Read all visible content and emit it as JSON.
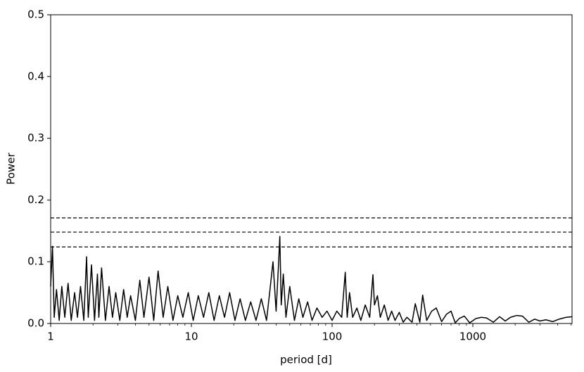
{
  "chart_data": {
    "type": "line",
    "xlabel": "period [d]",
    "ylabel": "Power",
    "xscale": "log",
    "xlim": [
      1,
      5070
    ],
    "ylim": [
      0,
      0.5
    ],
    "xticks": [
      1,
      10,
      100,
      1000
    ],
    "yticks": [
      {
        "value": 0,
        "label": "0.0"
      },
      0.1,
      0.2,
      0.3,
      0.4,
      0.5
    ],
    "color": "#000000",
    "hlines": [
      0.171,
      0.148,
      0.124
    ],
    "x": [
      1,
      1.03,
      1.06,
      1.1,
      1.15,
      1.2,
      1.26,
      1.33,
      1.4,
      1.48,
      1.55,
      1.63,
      1.72,
      1.8,
      1.85,
      1.95,
      2.05,
      2.15,
      2.2,
      2.3,
      2.45,
      2.6,
      2.75,
      2.9,
      3.1,
      3.3,
      3.5,
      3.7,
      4.0,
      4.3,
      4.6,
      5.0,
      5.4,
      5.8,
      6.3,
      6.8,
      7.4,
      8.0,
      8.7,
      9.5,
      10.3,
      11.2,
      12.2,
      13.3,
      14.5,
      15.8,
      17.2,
      18.7,
      20.4,
      22.2,
      24.2,
      26.4,
      28.8,
      31.4,
      34.2,
      36,
      38,
      40,
      41.5,
      42.5,
      43.5,
      45,
      47,
      50,
      54,
      58,
      62,
      67,
      72,
      78,
      85,
      92,
      100,
      108,
      117,
      124,
      128,
      133,
      140,
      150,
      160,
      172,
      185,
      195,
      200,
      210,
      220,
      235,
      250,
      265,
      280,
      300,
      320,
      340,
      370,
      390,
      420,
      440,
      470,
      510,
      550,
      600,
      650,
      700,
      750,
      800,
      870,
      950,
      1050,
      1150,
      1250,
      1400,
      1550,
      1700,
      1850,
      2050,
      2250,
      2500,
      2750,
      3000,
      3300,
      3700,
      4100,
      4600,
      5070
    ],
    "values": [
      0.06,
      0.125,
      0.01,
      0.055,
      0.005,
      0.06,
      0.01,
      0.065,
      0.005,
      0.05,
      0.01,
      0.06,
      0.005,
      0.108,
      0.01,
      0.095,
      0.005,
      0.08,
      0.01,
      0.09,
      0.005,
      0.06,
      0.01,
      0.05,
      0.005,
      0.055,
      0.01,
      0.045,
      0.005,
      0.07,
      0.01,
      0.075,
      0.005,
      0.085,
      0.01,
      0.06,
      0.005,
      0.045,
      0.01,
      0.05,
      0.005,
      0.045,
      0.01,
      0.05,
      0.005,
      0.045,
      0.01,
      0.05,
      0.005,
      0.04,
      0.005,
      0.035,
      0.005,
      0.04,
      0.005,
      0.05,
      0.1,
      0.02,
      0.09,
      0.141,
      0.03,
      0.08,
      0.01,
      0.06,
      0.005,
      0.04,
      0.01,
      0.035,
      0.005,
      0.025,
      0.01,
      0.02,
      0.005,
      0.02,
      0.01,
      0.083,
      0.01,
      0.05,
      0.01,
      0.025,
      0.005,
      0.03,
      0.01,
      0.079,
      0.03,
      0.045,
      0.01,
      0.03,
      0.005,
      0.02,
      0.005,
      0.018,
      0.002,
      0.01,
      0.002,
      0.032,
      0.002,
      0.046,
      0.005,
      0.02,
      0.025,
      0.003,
      0.015,
      0.02,
      0.001,
      0.008,
      0.012,
      0.001,
      0.008,
      0.01,
      0.009,
      0.002,
      0.011,
      0.004,
      0.01,
      0.013,
      0.012,
      0.002,
      0.007,
      0.004,
      0.006,
      0.003,
      0.007,
      0.01,
      0.011
    ]
  }
}
